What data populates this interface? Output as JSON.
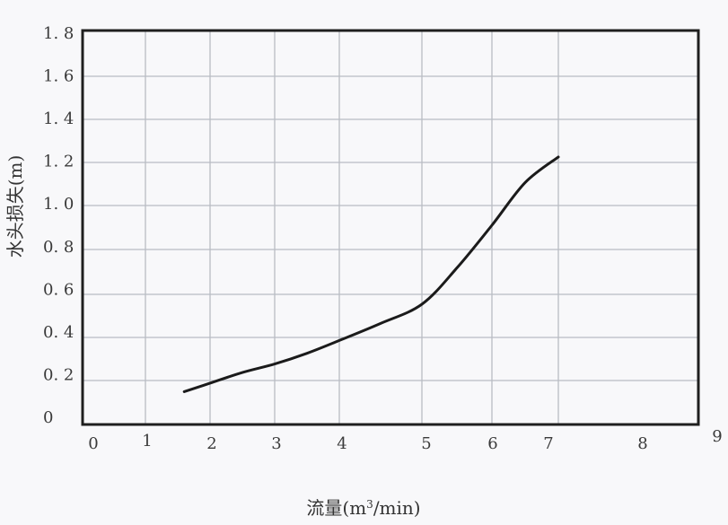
{
  "chart_data": {
    "type": "line",
    "xlabel_prefix": "流量(m",
    "xlabel_sup": "3",
    "xlabel_suffix": "/min)",
    "ylabel": "水头损失(m)",
    "x_tick_labels": [
      "0",
      "1",
      "2",
      "3",
      "4",
      "5",
      "6",
      "7",
      "8",
      "9"
    ],
    "y_tick_labels": [
      "0",
      "0. 2",
      "0. 4",
      "0. 6",
      "0. 8",
      "1. 0",
      "1. 2",
      "1. 4",
      "1. 6",
      "1. 8"
    ],
    "xlim": [
      0,
      9
    ],
    "ylim": [
      0,
      1.8
    ],
    "grid": true,
    "series": [
      {
        "x": [
          1.6,
          2.0,
          2.5,
          3.0,
          3.5,
          4.0,
          4.5,
          5.0,
          5.5,
          6.0,
          6.5,
          7.0
        ],
        "y": [
          0.12,
          0.16,
          0.21,
          0.25,
          0.3,
          0.36,
          0.44,
          0.53,
          0.7,
          0.9,
          1.1,
          1.22
        ]
      }
    ],
    "colors": {
      "line": "#1b1b1b",
      "grid": "#b9bcc4",
      "frame": "#1f1f1f"
    }
  }
}
